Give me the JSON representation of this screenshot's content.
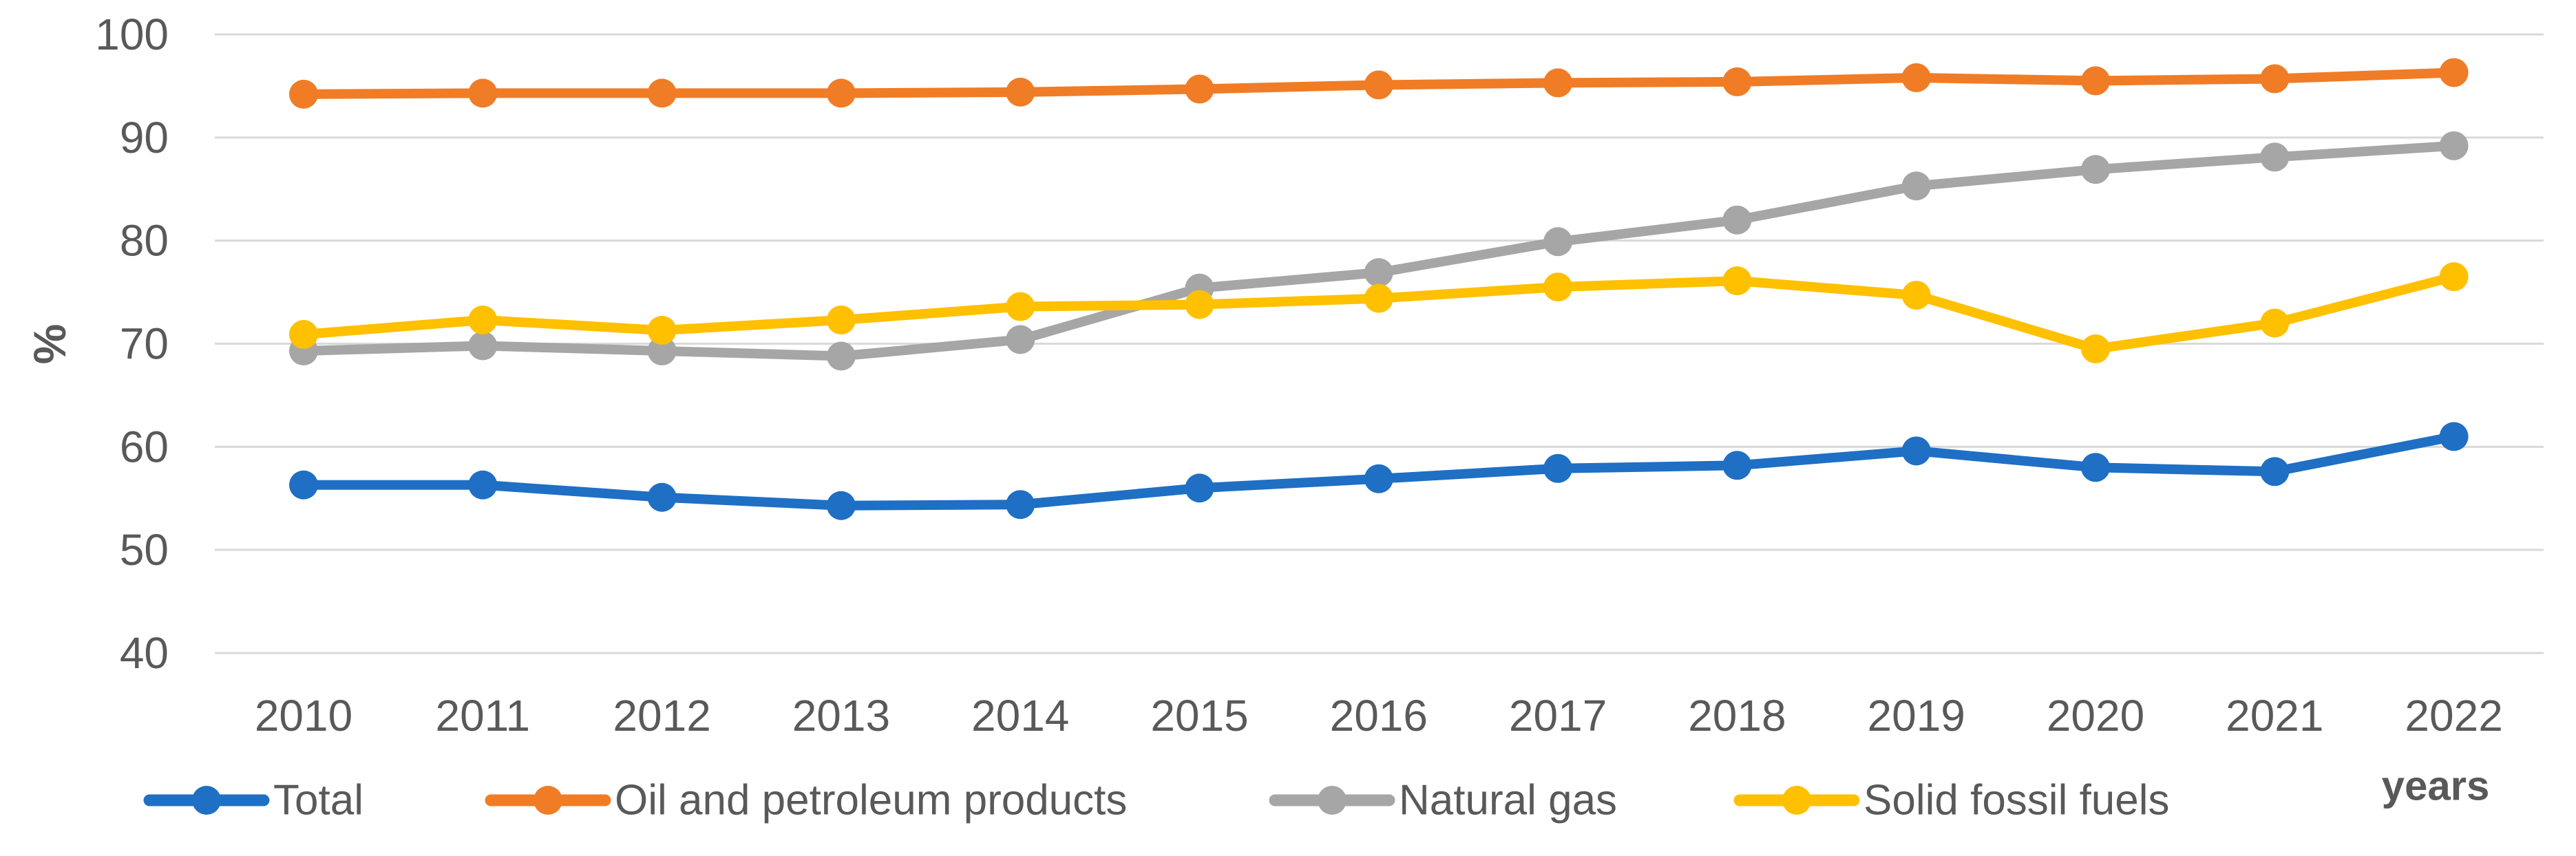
{
  "chart_data": {
    "type": "line",
    "title": "",
    "xlabel": "years",
    "ylabel": "%",
    "x": [
      2010,
      2011,
      2012,
      2013,
      2014,
      2015,
      2016,
      2017,
      2018,
      2019,
      2020,
      2021,
      2022
    ],
    "yticks": [
      100,
      90,
      80,
      70,
      60,
      50,
      40
    ],
    "ylim": [
      40,
      100
    ],
    "grid": true,
    "legend_position": "bottom",
    "series": [
      {
        "name": "Total",
        "color": "#1F6FC4",
        "values": [
          56.3,
          56.3,
          55.1,
          54.3,
          54.4,
          56.0,
          56.9,
          57.9,
          58.2,
          59.6,
          58.0,
          57.6,
          61.0
        ]
      },
      {
        "name": "Oil and petroleum products",
        "color": "#F07C26",
        "values": [
          94.2,
          94.3,
          94.3,
          94.3,
          94.4,
          94.7,
          95.1,
          95.3,
          95.4,
          95.8,
          95.5,
          95.7,
          96.3
        ]
      },
      {
        "name": "Natural gas",
        "color": "#A6A6A6",
        "values": [
          69.3,
          69.8,
          69.3,
          68.8,
          70.4,
          75.4,
          76.9,
          79.9,
          82.0,
          85.3,
          86.9,
          88.1,
          89.2
        ]
      },
      {
        "name": "Solid fossil fuels",
        "color": "#FFC000",
        "values": [
          70.9,
          72.3,
          71.3,
          72.3,
          73.6,
          73.8,
          74.4,
          75.5,
          76.1,
          74.7,
          69.5,
          72.0,
          76.5
        ]
      }
    ]
  },
  "colors": {
    "gridline": "#D9D9D9",
    "axis_text": "#595959"
  }
}
